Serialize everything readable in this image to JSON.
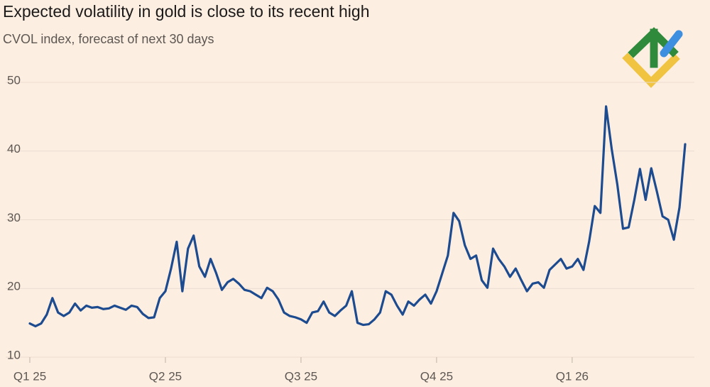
{
  "chart_data": {
    "type": "line",
    "title": "Expected volatility in gold is close to its recent high",
    "subtitle": "CVOL index, forecast of next 30 days",
    "categories": [
      "Q1 25",
      null,
      null,
      null,
      null,
      null,
      null,
      null,
      null,
      null,
      null,
      null,
      null,
      null,
      null,
      null,
      null,
      null,
      null,
      null,
      null,
      null,
      null,
      null,
      "Q2 25",
      null,
      null,
      null,
      null,
      null,
      null,
      null,
      null,
      null,
      null,
      null,
      null,
      null,
      null,
      null,
      null,
      null,
      null,
      null,
      null,
      null,
      null,
      null,
      "Q3 25",
      null,
      null,
      null,
      null,
      null,
      null,
      null,
      null,
      null,
      null,
      null,
      null,
      null,
      null,
      null,
      null,
      null,
      null,
      null,
      null,
      null,
      null,
      null,
      "Q4 25",
      null,
      null,
      null,
      null,
      null,
      null,
      null,
      null,
      null,
      null,
      null,
      null,
      null,
      null,
      null,
      null,
      null,
      null,
      null,
      null,
      null,
      null,
      null,
      "Q1 26",
      null,
      null,
      null,
      null,
      null,
      null,
      null,
      null,
      null,
      null,
      null,
      null,
      null,
      null,
      null,
      null,
      null,
      null,
      null,
      null
    ],
    "values": [
      14.9,
      14.5,
      14.9,
      16.2,
      18.6,
      16.5,
      16.0,
      16.5,
      17.8,
      16.8,
      17.5,
      17.2,
      17.3,
      17.0,
      17.1,
      17.5,
      17.2,
      16.9,
      17.5,
      17.3,
      16.3,
      15.7,
      15.8,
      18.6,
      19.6,
      22.9,
      26.8,
      19.6,
      25.8,
      27.7,
      23.2,
      21.7,
      24.3,
      22.2,
      19.8,
      20.9,
      21.4,
      20.7,
      19.8,
      19.6,
      19.1,
      18.6,
      20.1,
      19.6,
      18.4,
      16.5,
      16.0,
      15.8,
      15.5,
      15.0,
      16.5,
      16.7,
      18.1,
      16.5,
      16.0,
      16.8,
      17.5,
      19.6,
      15.0,
      14.7,
      14.8,
      15.5,
      16.5,
      19.6,
      19.1,
      17.5,
      16.2,
      18.1,
      17.5,
      18.4,
      19.1,
      17.8,
      19.6,
      22.2,
      24.8,
      31.0,
      29.8,
      26.3,
      24.3,
      24.8,
      21.2,
      20.1,
      25.8,
      24.3,
      23.2,
      21.7,
      22.9,
      21.2,
      19.6,
      20.7,
      20.9,
      20.1,
      22.7,
      23.5,
      24.3,
      22.9,
      23.2,
      24.3,
      22.7,
      26.8,
      32.0,
      31.0,
      46.5,
      40.3,
      35.1,
      28.7,
      28.9,
      32.9,
      37.4,
      32.9,
      37.5,
      34.1,
      30.5,
      30.0,
      27.1,
      31.8,
      41.0
    ],
    "color": "#1d4b8f",
    "ylim": [
      10,
      50
    ],
    "yticks": [
      10,
      20,
      30,
      40,
      50
    ],
    "grid": true
  }
}
